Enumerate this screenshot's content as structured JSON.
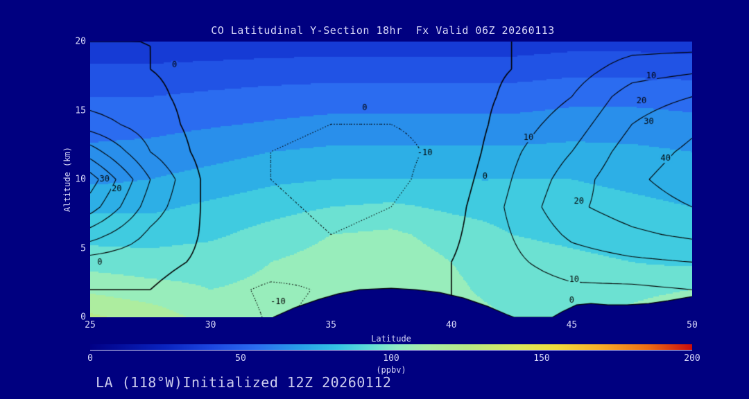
{
  "title": "CO Latitudinal Y-Section 18hr  Fx Valid 06Z 20260113",
  "footer": "LA (118°W)Initialized 12Z 20260112",
  "axes": {
    "x_label": "Latitude",
    "y_label": "Altitude (km)",
    "x_ticks": [
      25,
      30,
      35,
      40,
      45,
      50
    ],
    "y_ticks": [
      0,
      5,
      10,
      15,
      20
    ],
    "x_range": [
      25,
      50
    ],
    "y_range": [
      0,
      20
    ]
  },
  "colorbar": {
    "label": "(ppbv)",
    "ticks": [
      0,
      50,
      100,
      150,
      200
    ],
    "range": [
      0,
      200
    ],
    "stops": [
      {
        "v": 0,
        "c": "#000085"
      },
      {
        "v": 25,
        "c": "#0a24c0"
      },
      {
        "v": 40,
        "c": "#1c46e0"
      },
      {
        "v": 55,
        "c": "#2b6cf0"
      },
      {
        "v": 70,
        "c": "#28a0e8"
      },
      {
        "v": 82,
        "c": "#34c4e4"
      },
      {
        "v": 92,
        "c": "#5cdcd8"
      },
      {
        "v": 102,
        "c": "#90ecc4"
      },
      {
        "v": 112,
        "c": "#aaeea6"
      },
      {
        "v": 125,
        "c": "#b6e886"
      },
      {
        "v": 142,
        "c": "#dce85c"
      },
      {
        "v": 155,
        "c": "#f0dc3c"
      },
      {
        "v": 170,
        "c": "#f8ac28"
      },
      {
        "v": 185,
        "c": "#ee6e14"
      },
      {
        "v": 200,
        "c": "#c80c0c"
      }
    ]
  },
  "colors": {
    "background": "#000080",
    "text": "#d8d8f8",
    "contour": "#000000"
  },
  "chart_data": {
    "type": "heatmap",
    "title": "CO Latitudinal Y-Section 18hr  Fx Valid 06Z 20260113",
    "xlabel": "Latitude",
    "ylabel": "Altitude (km)",
    "units": "ppbv",
    "value_range": [
      0,
      200
    ],
    "x_latitude": [
      25,
      27.5,
      30,
      32.5,
      35,
      37.5,
      40,
      42.5,
      45,
      47.5,
      50
    ],
    "y_altitude_km": [
      0,
      2,
      4,
      6,
      8,
      10,
      12,
      14,
      16,
      18,
      20
    ],
    "fill_grid_ppbv": [
      [
        122,
        116,
        106,
        104,
        106,
        108,
        104,
        100,
        98,
        104,
        112
      ],
      [
        108,
        104,
        100,
        102,
        106,
        108,
        102,
        96,
        94,
        96,
        100
      ],
      [
        96,
        94,
        96,
        100,
        104,
        106,
        100,
        94,
        92,
        90,
        88
      ],
      [
        86,
        86,
        88,
        94,
        100,
        102,
        96,
        90,
        88,
        86,
        84
      ],
      [
        78,
        78,
        82,
        86,
        90,
        92,
        88,
        86,
        84,
        82,
        80
      ],
      [
        68,
        70,
        74,
        78,
        80,
        80,
        80,
        80,
        80,
        78,
        76
      ],
      [
        62,
        63,
        66,
        70,
        72,
        72,
        72,
        72,
        73,
        72,
        70
      ],
      [
        56,
        57,
        59,
        61,
        63,
        63,
        63,
        63,
        65,
        65,
        63
      ],
      [
        50,
        50,
        52,
        54,
        55,
        55,
        55,
        55,
        57,
        57,
        56
      ],
      [
        42,
        42,
        43,
        44,
        45,
        45,
        45,
        45,
        47,
        47,
        46
      ],
      [
        32,
        32,
        33,
        34,
        34,
        34,
        34,
        34,
        36,
        36,
        35
      ]
    ],
    "contour_levels": [
      -10,
      0,
      10,
      20,
      30,
      40,
      50
    ],
    "contour_grid": [
      [
        -2,
        0,
        -4,
        -11,
        -8,
        -3,
        0,
        2,
        3,
        2,
        3
      ],
      [
        0,
        0,
        -6,
        -12,
        -9,
        -5,
        0,
        5,
        8,
        8,
        10
      ],
      [
        5,
        3,
        -2,
        -5,
        -8,
        -6,
        0,
        8,
        15,
        18,
        20
      ],
      [
        25,
        8,
        -2,
        -6,
        -10,
        -8,
        -2,
        10,
        22,
        28,
        32
      ],
      [
        45,
        15,
        -3,
        -8,
        -12,
        -10,
        -4,
        12,
        28,
        35,
        40
      ],
      [
        55,
        20,
        -4,
        -10,
        -14,
        -12,
        -6,
        10,
        25,
        38,
        45
      ],
      [
        35,
        10,
        -5,
        -10,
        -12,
        -12,
        -8,
        8,
        20,
        35,
        42
      ],
      [
        15,
        5,
        -5,
        -8,
        -10,
        -10,
        -8,
        5,
        15,
        30,
        38
      ],
      [
        5,
        2,
        -4,
        -6,
        -8,
        -8,
        -6,
        2,
        10,
        25,
        30
      ],
      [
        2,
        0,
        -3,
        -4,
        -5,
        -5,
        -4,
        0,
        5,
        15,
        18
      ],
      [
        0,
        0,
        -2,
        -2,
        -2,
        -2,
        -2,
        0,
        2,
        5,
        5
      ]
    ],
    "contour_labels": [
      {
        "text": "0",
        "lat": 28.5,
        "alt": 18.3
      },
      {
        "text": "0",
        "lat": 36.4,
        "alt": 15.2
      },
      {
        "text": "-10",
        "lat": 38.9,
        "alt": 11.9
      },
      {
        "text": "0",
        "lat": 41.4,
        "alt": 10.2
      },
      {
        "text": "10",
        "lat": 43.2,
        "alt": 13.0
      },
      {
        "text": "10",
        "lat": 48.3,
        "alt": 17.5
      },
      {
        "text": "20",
        "lat": 47.9,
        "alt": 15.7
      },
      {
        "text": "30",
        "lat": 48.2,
        "alt": 14.2
      },
      {
        "text": "40",
        "lat": 48.9,
        "alt": 11.5
      },
      {
        "text": "20",
        "lat": 45.3,
        "alt": 8.4
      },
      {
        "text": "30",
        "lat": 25.6,
        "alt": 10.0
      },
      {
        "text": "20",
        "lat": 26.1,
        "alt": 9.3
      },
      {
        "text": "0",
        "lat": 25.4,
        "alt": 4.0
      },
      {
        "text": "-10",
        "lat": 32.8,
        "alt": 1.1
      },
      {
        "text": "10",
        "lat": 45.1,
        "alt": 2.7
      },
      {
        "text": "0",
        "lat": 45.0,
        "alt": 1.2
      }
    ],
    "terrain_profile": [
      [
        32.6,
        0
      ],
      [
        33.5,
        0.7
      ],
      [
        34.5,
        1.3
      ],
      [
        35.3,
        1.7
      ],
      [
        36.2,
        2.0
      ],
      [
        37.5,
        2.1
      ],
      [
        38.5,
        2.0
      ],
      [
        39.5,
        1.8
      ],
      [
        40.5,
        1.4
      ],
      [
        41.5,
        0.8
      ],
      [
        42.3,
        0.2
      ],
      [
        42.6,
        0
      ],
      [
        44.2,
        0
      ],
      [
        44.6,
        0.4
      ],
      [
        45.2,
        0.9
      ],
      [
        45.8,
        1.0
      ],
      [
        46.5,
        0.9
      ],
      [
        47.3,
        0.9
      ],
      [
        48.2,
        1.0
      ],
      [
        49.0,
        1.2
      ],
      [
        50,
        1.5
      ]
    ]
  }
}
